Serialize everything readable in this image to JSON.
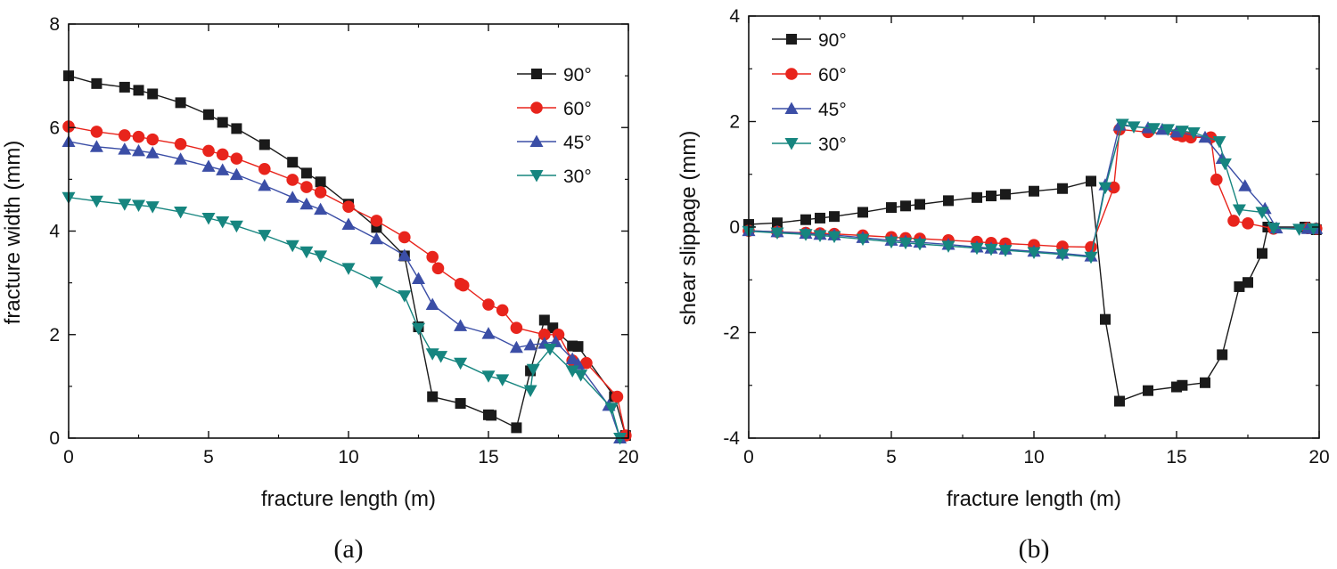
{
  "chart_data": [
    {
      "type": "line",
      "panel_label": "(a)",
      "xlabel": "fracture length (m)",
      "ylabel": "fracture width (mm)",
      "xlim": [
        0,
        20
      ],
      "ylim": [
        0,
        8
      ],
      "xticks": [
        "0",
        "5",
        "10",
        "15",
        "20"
      ],
      "yticks": [
        "0",
        "2",
        "4",
        "6",
        "8"
      ],
      "legend_position": "top-right",
      "series": [
        {
          "name": "90°",
          "color": "#1a1a1a",
          "marker": "square",
          "x": [
            0,
            1,
            2,
            2.5,
            3,
            4,
            5,
            5.5,
            6,
            7,
            8,
            8.5,
            9,
            10,
            11,
            12,
            12.5,
            13,
            14,
            15,
            15.1,
            16,
            16.5,
            17,
            17.3,
            18,
            18.2,
            19.5,
            19.9
          ],
          "y": [
            7.0,
            6.85,
            6.78,
            6.72,
            6.65,
            6.48,
            6.25,
            6.1,
            5.98,
            5.67,
            5.33,
            5.12,
            4.95,
            4.52,
            4.07,
            3.52,
            2.15,
            0.8,
            0.67,
            0.45,
            0.44,
            0.2,
            1.3,
            2.28,
            2.13,
            1.78,
            1.77,
            0.8,
            0.05
          ]
        },
        {
          "name": "60°",
          "color": "#e8241c",
          "marker": "circle",
          "x": [
            0,
            1,
            2,
            2.5,
            3,
            4,
            5,
            5.5,
            6,
            7,
            8,
            8.5,
            9,
            10,
            11,
            12,
            13,
            13.2,
            14,
            14.1,
            15,
            15.5,
            16,
            17,
            17.5,
            18,
            18.5,
            19.6,
            19.9
          ],
          "y": [
            6.02,
            5.92,
            5.85,
            5.82,
            5.77,
            5.68,
            5.55,
            5.48,
            5.4,
            5.2,
            4.99,
            4.85,
            4.75,
            4.47,
            4.2,
            3.88,
            3.5,
            3.28,
            2.98,
            2.95,
            2.58,
            2.47,
            2.13,
            2.0,
            2.0,
            1.5,
            1.45,
            0.8,
            0.05
          ]
        },
        {
          "name": "45°",
          "color": "#3b4ea6",
          "marker": "triangle-up",
          "x": [
            0,
            1,
            2,
            2.5,
            3,
            4,
            5,
            5.5,
            6,
            7,
            8,
            8.5,
            9,
            10,
            11,
            12,
            12.5,
            13,
            14,
            15,
            16,
            16.5,
            17,
            17.4,
            18,
            18.2,
            19.3,
            19.7
          ],
          "y": [
            5.73,
            5.63,
            5.58,
            5.55,
            5.51,
            5.39,
            5.25,
            5.18,
            5.09,
            4.88,
            4.65,
            4.52,
            4.42,
            4.13,
            3.85,
            3.53,
            3.08,
            2.58,
            2.17,
            2.02,
            1.75,
            1.8,
            1.83,
            1.86,
            1.53,
            1.43,
            0.63,
            0.0
          ]
        },
        {
          "name": "30°",
          "color": "#16857f",
          "marker": "triangle-down",
          "x": [
            0,
            1,
            2,
            2.5,
            3,
            4,
            5,
            5.5,
            6,
            7,
            8,
            8.5,
            9,
            10,
            11,
            12,
            12.5,
            13,
            13.3,
            14,
            15,
            15.5,
            16.5,
            16.6,
            17.2,
            18,
            18.3,
            19.4,
            19.7
          ],
          "y": [
            4.65,
            4.58,
            4.52,
            4.5,
            4.47,
            4.37,
            4.25,
            4.18,
            4.1,
            3.92,
            3.72,
            3.6,
            3.52,
            3.28,
            3.02,
            2.75,
            2.12,
            1.63,
            1.58,
            1.45,
            1.2,
            1.13,
            0.92,
            1.33,
            1.72,
            1.3,
            1.22,
            0.58,
            0.0
          ]
        }
      ]
    },
    {
      "type": "line",
      "panel_label": "(b)",
      "xlabel": "fracture length (m)",
      "ylabel": "shear slippage (mm)",
      "xlim": [
        0,
        20
      ],
      "ylim": [
        -4,
        4
      ],
      "xticks": [
        "0",
        "5",
        "10",
        "15",
        "20"
      ],
      "yticks": [
        "-4",
        "-2",
        "0",
        "2",
        "4"
      ],
      "legend_position": "top-left",
      "series": [
        {
          "name": "90°",
          "color": "#1a1a1a",
          "marker": "square",
          "x": [
            0,
            1,
            2,
            2.5,
            3,
            4,
            5,
            5.5,
            6,
            7,
            8,
            8.5,
            9,
            10,
            11,
            12,
            12.5,
            13,
            14,
            15,
            15.2,
            16,
            16.6,
            17.2,
            17.5,
            18,
            18.2,
            19.5,
            19.9
          ],
          "y": [
            0.05,
            0.08,
            0.14,
            0.17,
            0.2,
            0.28,
            0.37,
            0.4,
            0.43,
            0.5,
            0.56,
            0.59,
            0.62,
            0.68,
            0.73,
            0.87,
            -1.75,
            -3.3,
            -3.1,
            -3.03,
            -3.0,
            -2.95,
            -2.42,
            -1.13,
            -1.05,
            -0.5,
            0.0,
            0.0,
            -0.05
          ]
        },
        {
          "name": "60°",
          "color": "#e8241c",
          "marker": "circle",
          "x": [
            0,
            1,
            2,
            2.5,
            3,
            4,
            5,
            5.5,
            6,
            7,
            8,
            8.5,
            9,
            10,
            11,
            12,
            12.8,
            13,
            14,
            15,
            15.2,
            15.5,
            16.2,
            16.4,
            17,
            17.5,
            18.4,
            19.6,
            19.9
          ],
          "y": [
            -0.07,
            -0.09,
            -0.11,
            -0.12,
            -0.13,
            -0.16,
            -0.19,
            -0.21,
            -0.22,
            -0.25,
            -0.28,
            -0.3,
            -0.31,
            -0.34,
            -0.37,
            -0.38,
            0.75,
            1.85,
            1.8,
            1.75,
            1.72,
            1.7,
            1.7,
            0.9,
            0.12,
            0.07,
            -0.03,
            -0.02,
            -0.03
          ]
        },
        {
          "name": "45°",
          "color": "#3b4ea6",
          "marker": "triangle-up",
          "x": [
            0,
            1,
            2,
            2.5,
            3,
            4,
            5,
            5.5,
            6,
            7,
            8,
            8.5,
            9,
            10,
            11,
            12,
            12.5,
            13,
            14,
            14.5,
            15,
            16,
            16.6,
            17.4,
            18.1,
            18.5,
            19.6,
            19.9
          ],
          "y": [
            -0.07,
            -0.09,
            -0.12,
            -0.14,
            -0.15,
            -0.2,
            -0.25,
            -0.27,
            -0.29,
            -0.33,
            -0.38,
            -0.4,
            -0.42,
            -0.46,
            -0.5,
            -0.55,
            0.8,
            1.93,
            1.88,
            1.85,
            1.8,
            1.7,
            1.3,
            0.78,
            0.35,
            -0.02,
            -0.03,
            -0.03
          ]
        },
        {
          "name": "30°",
          "color": "#16857f",
          "marker": "triangle-down",
          "x": [
            0,
            1,
            2,
            2.5,
            3,
            4,
            5,
            5.5,
            6,
            7,
            8,
            8.5,
            9,
            10,
            11,
            12,
            12.5,
            13.1,
            13.5,
            14.2,
            14.7,
            15.2,
            15.6,
            16.5,
            16.7,
            17.2,
            18,
            18.4,
            19.3,
            19.8
          ],
          "y": [
            -0.08,
            -0.11,
            -0.14,
            -0.16,
            -0.18,
            -0.23,
            -0.28,
            -0.3,
            -0.32,
            -0.36,
            -0.4,
            -0.42,
            -0.44,
            -0.48,
            -0.52,
            -0.57,
            0.75,
            1.95,
            1.9,
            1.87,
            1.85,
            1.82,
            1.79,
            1.62,
            1.2,
            0.33,
            0.28,
            -0.02,
            -0.04,
            -0.03
          ]
        }
      ]
    }
  ]
}
